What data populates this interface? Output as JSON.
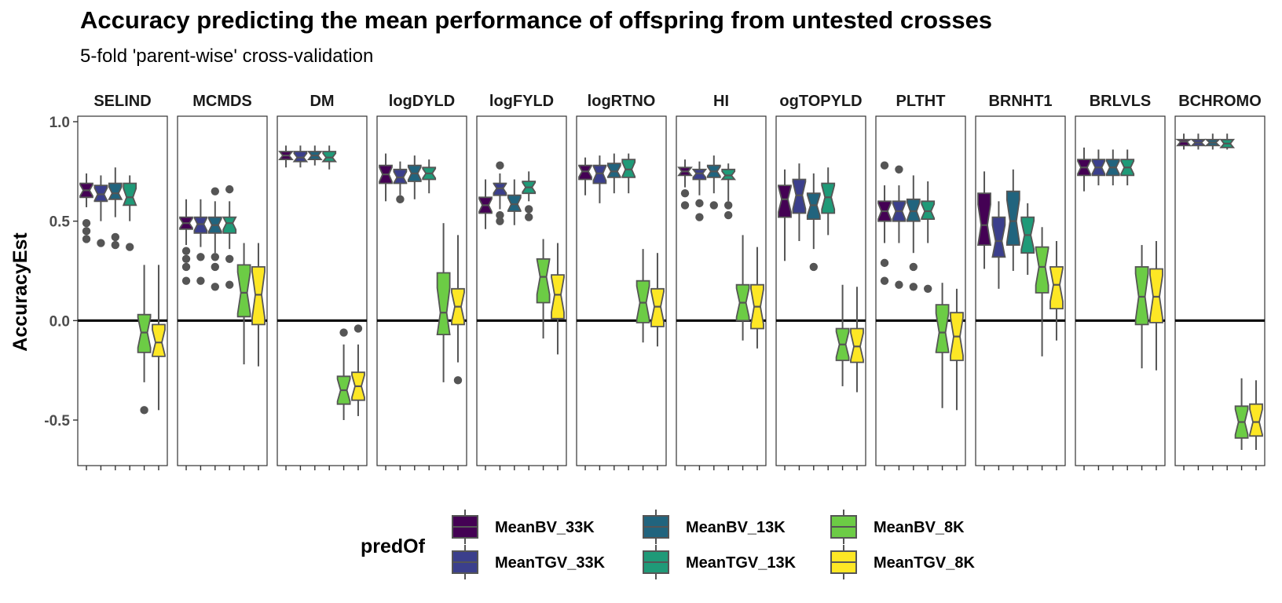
{
  "title": "Accuracy predicting the mean performance of offspring from untested crosses",
  "subtitle": "5-fold 'parent-wise' cross-validation",
  "chart_data": {
    "type": "boxplot",
    "ylabel": "AccuracyEst",
    "ylim": [
      -0.73,
      1.02
    ],
    "yticks": [
      -0.5,
      0.0,
      0.5,
      1.0
    ],
    "ytick_labels": [
      "-0.5",
      "0.0",
      "0.5",
      "1.0"
    ],
    "reference_line": 0,
    "notched": true,
    "legend": {
      "title": "predOf",
      "position": "bottom",
      "entries": [
        {
          "name": "MeanBV_33K",
          "color": "#440154"
        },
        {
          "name": "MeanTGV_33K",
          "color": "#3B3F8C"
        },
        {
          "name": "MeanBV_13K",
          "color": "#21647E"
        },
        {
          "name": "MeanTGV_13K",
          "color": "#1F9A78"
        },
        {
          "name": "MeanBV_8K",
          "color": "#6CCC45"
        },
        {
          "name": "MeanTGV_8K",
          "color": "#FDE725"
        }
      ]
    },
    "panels": [
      {
        "label": "SELIND",
        "boxes": [
          {
            "q1": 0.62,
            "med": 0.655,
            "q3": 0.69,
            "lo": 0.57,
            "hi": 0.74,
            "out": [
              0.49,
              0.45,
              0.41
            ]
          },
          {
            "q1": 0.6,
            "med": 0.635,
            "q3": 0.68,
            "lo": 0.5,
            "hi": 0.73,
            "out": [
              0.39
            ]
          },
          {
            "q1": 0.61,
            "med": 0.64,
            "q3": 0.69,
            "lo": 0.52,
            "hi": 0.77,
            "out": [
              0.42,
              0.38
            ]
          },
          {
            "q1": 0.58,
            "med": 0.62,
            "q3": 0.69,
            "lo": 0.5,
            "hi": 0.73,
            "out": [
              0.37
            ]
          },
          {
            "q1": -0.16,
            "med": -0.06,
            "q3": 0.03,
            "lo": -0.31,
            "hi": 0.28,
            "out": [
              -0.45
            ]
          },
          {
            "q1": -0.18,
            "med": -0.11,
            "q3": -0.02,
            "lo": -0.45,
            "hi": 0.28,
            "out": []
          }
        ]
      },
      {
        "label": "MCMDS",
        "boxes": [
          {
            "q1": 0.46,
            "med": 0.49,
            "q3": 0.52,
            "lo": 0.38,
            "hi": 0.61,
            "out": [
              0.35,
              0.31,
              0.27,
              0.2
            ]
          },
          {
            "q1": 0.44,
            "med": 0.485,
            "q3": 0.52,
            "lo": 0.37,
            "hi": 0.61,
            "out": [
              0.32,
              0.2
            ]
          },
          {
            "q1": 0.44,
            "med": 0.48,
            "q3": 0.52,
            "lo": 0.34,
            "hi": 0.6,
            "out": [
              0.65,
              0.32,
              0.27,
              0.17
            ]
          },
          {
            "q1": 0.44,
            "med": 0.49,
            "q3": 0.52,
            "lo": 0.36,
            "hi": 0.6,
            "out": [
              0.66,
              0.31,
              0.18
            ]
          },
          {
            "q1": 0.02,
            "med": 0.14,
            "q3": 0.28,
            "lo": -0.22,
            "hi": 0.39,
            "out": []
          },
          {
            "q1": -0.02,
            "med": 0.13,
            "q3": 0.27,
            "lo": -0.23,
            "hi": 0.39,
            "out": []
          }
        ]
      },
      {
        "label": "DM",
        "boxes": [
          {
            "q1": 0.81,
            "med": 0.83,
            "q3": 0.85,
            "lo": 0.77,
            "hi": 0.88,
            "out": []
          },
          {
            "q1": 0.8,
            "med": 0.82,
            "q3": 0.85,
            "lo": 0.77,
            "hi": 0.88,
            "out": []
          },
          {
            "q1": 0.81,
            "med": 0.83,
            "q3": 0.85,
            "lo": 0.78,
            "hi": 0.88,
            "out": []
          },
          {
            "q1": 0.8,
            "med": 0.82,
            "q3": 0.85,
            "lo": 0.76,
            "hi": 0.88,
            "out": []
          },
          {
            "q1": -0.42,
            "med": -0.35,
            "q3": -0.28,
            "lo": -0.5,
            "hi": -0.12,
            "out": [
              -0.06
            ]
          },
          {
            "q1": -0.4,
            "med": -0.33,
            "q3": -0.26,
            "lo": -0.48,
            "hi": -0.12,
            "out": [
              -0.04
            ]
          }
        ]
      },
      {
        "label": "logDYLD",
        "boxes": [
          {
            "q1": 0.69,
            "med": 0.735,
            "q3": 0.78,
            "lo": 0.6,
            "hi": 0.84,
            "out": []
          },
          {
            "q1": 0.69,
            "med": 0.72,
            "q3": 0.76,
            "lo": 0.63,
            "hi": 0.8,
            "out": [
              0.61
            ]
          },
          {
            "q1": 0.7,
            "med": 0.74,
            "q3": 0.78,
            "lo": 0.61,
            "hi": 0.83,
            "out": []
          },
          {
            "q1": 0.71,
            "med": 0.74,
            "q3": 0.77,
            "lo": 0.64,
            "hi": 0.81,
            "out": []
          },
          {
            "q1": -0.07,
            "med": 0.04,
            "q3": 0.24,
            "lo": -0.31,
            "hi": 0.49,
            "out": []
          },
          {
            "q1": -0.02,
            "med": 0.07,
            "q3": 0.16,
            "lo": -0.21,
            "hi": 0.43,
            "out": [
              -0.3
            ]
          }
        ]
      },
      {
        "label": "logFYLD",
        "boxes": [
          {
            "q1": 0.54,
            "med": 0.58,
            "q3": 0.62,
            "lo": 0.46,
            "hi": 0.71,
            "out": []
          },
          {
            "q1": 0.63,
            "med": 0.665,
            "q3": 0.69,
            "lo": 0.56,
            "hi": 0.74,
            "out": [
              0.78,
              0.53,
              0.5
            ]
          },
          {
            "q1": 0.55,
            "med": 0.585,
            "q3": 0.63,
            "lo": 0.48,
            "hi": 0.71,
            "out": []
          },
          {
            "q1": 0.64,
            "med": 0.67,
            "q3": 0.7,
            "lo": 0.6,
            "hi": 0.75,
            "out": [
              0.56,
              0.52
            ]
          },
          {
            "q1": 0.09,
            "med": 0.22,
            "q3": 0.31,
            "lo": -0.09,
            "hi": 0.41,
            "out": []
          },
          {
            "q1": 0.01,
            "med": 0.13,
            "q3": 0.23,
            "lo": -0.17,
            "hi": 0.39,
            "out": []
          }
        ]
      },
      {
        "label": "logRTNO",
        "boxes": [
          {
            "q1": 0.71,
            "med": 0.75,
            "q3": 0.78,
            "lo": 0.63,
            "hi": 0.82,
            "out": []
          },
          {
            "q1": 0.69,
            "med": 0.74,
            "q3": 0.78,
            "lo": 0.59,
            "hi": 0.83,
            "out": []
          },
          {
            "q1": 0.72,
            "med": 0.75,
            "q3": 0.79,
            "lo": 0.64,
            "hi": 0.84,
            "out": []
          },
          {
            "q1": 0.72,
            "med": 0.76,
            "q3": 0.81,
            "lo": 0.64,
            "hi": 0.84,
            "out": []
          },
          {
            "q1": -0.01,
            "med": 0.09,
            "q3": 0.2,
            "lo": -0.11,
            "hi": 0.36,
            "out": []
          },
          {
            "q1": -0.03,
            "med": 0.07,
            "q3": 0.16,
            "lo": -0.13,
            "hi": 0.34,
            "out": []
          }
        ]
      },
      {
        "label": "HI",
        "boxes": [
          {
            "q1": 0.73,
            "med": 0.75,
            "q3": 0.77,
            "lo": 0.67,
            "hi": 0.81,
            "out": [
              0.64,
              0.58
            ]
          },
          {
            "q1": 0.71,
            "med": 0.74,
            "q3": 0.76,
            "lo": 0.63,
            "hi": 0.8,
            "out": [
              0.59,
              0.52
            ]
          },
          {
            "q1": 0.72,
            "med": 0.75,
            "q3": 0.78,
            "lo": 0.64,
            "hi": 0.83,
            "out": [
              0.58
            ]
          },
          {
            "q1": 0.71,
            "med": 0.73,
            "q3": 0.76,
            "lo": 0.6,
            "hi": 0.79,
            "out": [
              0.58,
              0.53
            ]
          },
          {
            "q1": 0.0,
            "med": 0.09,
            "q3": 0.18,
            "lo": -0.1,
            "hi": 0.43,
            "out": []
          },
          {
            "q1": -0.04,
            "med": 0.07,
            "q3": 0.18,
            "lo": -0.14,
            "hi": 0.37,
            "out": []
          }
        ]
      },
      {
        "label": "ogTOPYLD",
        "boxes": [
          {
            "q1": 0.52,
            "med": 0.61,
            "q3": 0.68,
            "lo": 0.3,
            "hi": 0.76,
            "out": []
          },
          {
            "q1": 0.54,
            "med": 0.63,
            "q3": 0.71,
            "lo": 0.4,
            "hi": 0.79,
            "out": []
          },
          {
            "q1": 0.51,
            "med": 0.58,
            "q3": 0.64,
            "lo": 0.36,
            "hi": 0.74,
            "out": [
              0.27
            ]
          },
          {
            "q1": 0.54,
            "med": 0.62,
            "q3": 0.69,
            "lo": 0.43,
            "hi": 0.77,
            "out": []
          },
          {
            "q1": -0.2,
            "med": -0.12,
            "q3": -0.04,
            "lo": -0.33,
            "hi": 0.18,
            "out": []
          },
          {
            "q1": -0.21,
            "med": -0.13,
            "q3": -0.04,
            "lo": -0.36,
            "hi": 0.17,
            "out": []
          }
        ]
      },
      {
        "label": "PLTHT",
        "boxes": [
          {
            "q1": 0.5,
            "med": 0.55,
            "q3": 0.6,
            "lo": 0.39,
            "hi": 0.68,
            "out": [
              0.78,
              0.29,
              0.2
            ]
          },
          {
            "q1": 0.5,
            "med": 0.55,
            "q3": 0.6,
            "lo": 0.39,
            "hi": 0.68,
            "out": [
              0.76,
              0.18
            ]
          },
          {
            "q1": 0.5,
            "med": 0.55,
            "q3": 0.61,
            "lo": 0.34,
            "hi": 0.73,
            "out": [
              0.27,
              0.17
            ]
          },
          {
            "q1": 0.51,
            "med": 0.55,
            "q3": 0.6,
            "lo": 0.39,
            "hi": 0.7,
            "out": [
              0.16
            ]
          },
          {
            "q1": -0.16,
            "med": -0.06,
            "q3": 0.08,
            "lo": -0.44,
            "hi": 0.19,
            "out": []
          },
          {
            "q1": -0.2,
            "med": -0.08,
            "q3": 0.04,
            "lo": -0.45,
            "hi": 0.16,
            "out": []
          }
        ]
      },
      {
        "label": "BRNHT1",
        "boxes": [
          {
            "q1": 0.38,
            "med": 0.48,
            "q3": 0.64,
            "lo": 0.26,
            "hi": 0.75,
            "out": []
          },
          {
            "q1": 0.32,
            "med": 0.4,
            "q3": 0.52,
            "lo": 0.16,
            "hi": 0.6,
            "out": []
          },
          {
            "q1": 0.38,
            "med": 0.5,
            "q3": 0.65,
            "lo": 0.25,
            "hi": 0.76,
            "out": []
          },
          {
            "q1": 0.34,
            "med": 0.43,
            "q3": 0.52,
            "lo": 0.23,
            "hi": 0.59,
            "out": []
          },
          {
            "q1": 0.14,
            "med": 0.27,
            "q3": 0.37,
            "lo": -0.18,
            "hi": 0.47,
            "out": []
          },
          {
            "q1": 0.06,
            "med": 0.18,
            "q3": 0.27,
            "lo": -0.1,
            "hi": 0.4,
            "out": []
          }
        ]
      },
      {
        "label": "BRLVLS",
        "boxes": [
          {
            "q1": 0.73,
            "med": 0.77,
            "q3": 0.81,
            "lo": 0.65,
            "hi": 0.87,
            "out": []
          },
          {
            "q1": 0.73,
            "med": 0.77,
            "q3": 0.81,
            "lo": 0.68,
            "hi": 0.86,
            "out": []
          },
          {
            "q1": 0.73,
            "med": 0.77,
            "q3": 0.81,
            "lo": 0.68,
            "hi": 0.86,
            "out": []
          },
          {
            "q1": 0.73,
            "med": 0.77,
            "q3": 0.81,
            "lo": 0.68,
            "hi": 0.86,
            "out": []
          },
          {
            "q1": -0.02,
            "med": 0.12,
            "q3": 0.27,
            "lo": -0.24,
            "hi": 0.38,
            "out": []
          },
          {
            "q1": -0.01,
            "med": 0.12,
            "q3": 0.26,
            "lo": -0.25,
            "hi": 0.4,
            "out": []
          }
        ]
      },
      {
        "label": "BCHROMO",
        "boxes": [
          {
            "q1": 0.88,
            "med": 0.9,
            "q3": 0.91,
            "lo": 0.86,
            "hi": 0.94,
            "out": []
          },
          {
            "q1": 0.88,
            "med": 0.895,
            "q3": 0.91,
            "lo": 0.86,
            "hi": 0.94,
            "out": []
          },
          {
            "q1": 0.88,
            "med": 0.895,
            "q3": 0.91,
            "lo": 0.86,
            "hi": 0.94,
            "out": []
          },
          {
            "q1": 0.87,
            "med": 0.89,
            "q3": 0.91,
            "lo": 0.86,
            "hi": 0.94,
            "out": []
          },
          {
            "q1": -0.59,
            "med": -0.51,
            "q3": -0.43,
            "lo": -0.65,
            "hi": -0.29,
            "out": []
          },
          {
            "q1": -0.58,
            "med": -0.51,
            "q3": -0.42,
            "lo": -0.65,
            "hi": -0.3,
            "out": []
          }
        ]
      }
    ]
  }
}
